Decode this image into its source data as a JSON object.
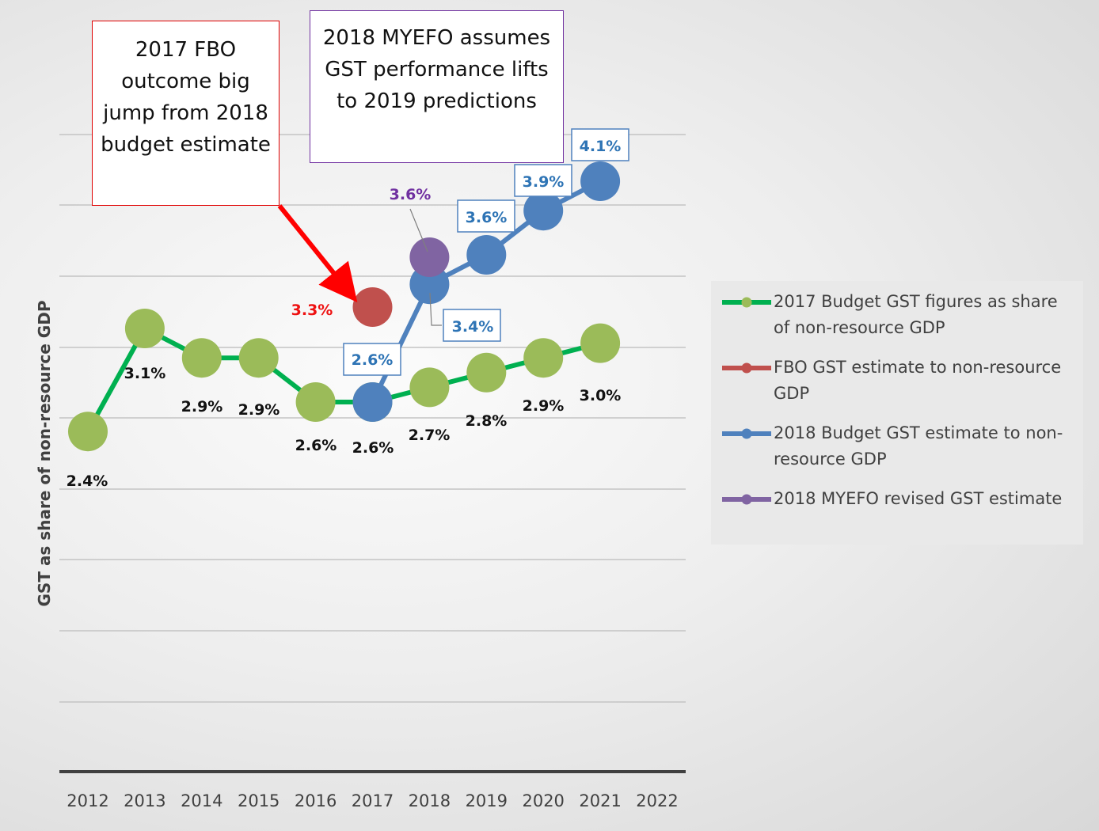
{
  "chart_data": {
    "type": "line",
    "ylabel": "GST as share of non-resource GDP",
    "categories": [
      "2012",
      "2013",
      "2014",
      "2015",
      "2016",
      "2017",
      "2018",
      "2019",
      "2020",
      "2021",
      "2022"
    ],
    "series": [
      {
        "name": "2017 Budget GST figures as share of non-resource GDP",
        "color": "#00b050",
        "marker_color": "#9bbb59",
        "values": [
          2.4,
          3.1,
          2.9,
          2.9,
          2.6,
          2.6,
          2.7,
          2.8,
          2.9,
          3.0,
          null
        ],
        "labels": [
          "2.4%",
          "3.1%",
          "2.9%",
          "2.9%",
          "2.6%",
          "2.6%",
          "2.7%",
          "2.8%",
          "2.9%",
          "3.0%",
          null
        ]
      },
      {
        "name": "FBO GST estimate to non-resource GDP",
        "color": "#c0504d",
        "marker_color": "#c0504d",
        "values": [
          null,
          null,
          null,
          null,
          null,
          3.3,
          null,
          null,
          null,
          null,
          null
        ],
        "labels": [
          null,
          null,
          null,
          null,
          null,
          "3.3%",
          null,
          null,
          null,
          null,
          null
        ]
      },
      {
        "name": "2018 Budget GST estimate to non-resource GDP",
        "color": "#4f81bd",
        "marker_color": "#4f81bd",
        "values": [
          null,
          null,
          null,
          null,
          null,
          2.6,
          3.4,
          3.6,
          3.9,
          4.1,
          null
        ],
        "labels": [
          null,
          null,
          null,
          null,
          null,
          "2.6%",
          "3.4%",
          "3.6%",
          "3.9%",
          "4.1%",
          null
        ]
      },
      {
        "name": "2018 MYEFO revised GST estimate",
        "color": "#8064a2",
        "marker_color": "#8064a2",
        "values": [
          null,
          null,
          null,
          null,
          null,
          null,
          3.6,
          null,
          null,
          null,
          null
        ],
        "labels": [
          null,
          null,
          null,
          null,
          null,
          null,
          "3.6%",
          null,
          null,
          null,
          null
        ]
      }
    ],
    "annotations": [
      {
        "text": "2017 FBO outcome big jump from 2018 budget estimate",
        "border_color": "#e00000",
        "arrow_color": "#ff0000"
      },
      {
        "text": "2018 MYEFO assumes GST performance lifts to 2019 predictions",
        "border_color": "#7030a0"
      }
    ],
    "grid": true,
    "legend_position": "right"
  }
}
